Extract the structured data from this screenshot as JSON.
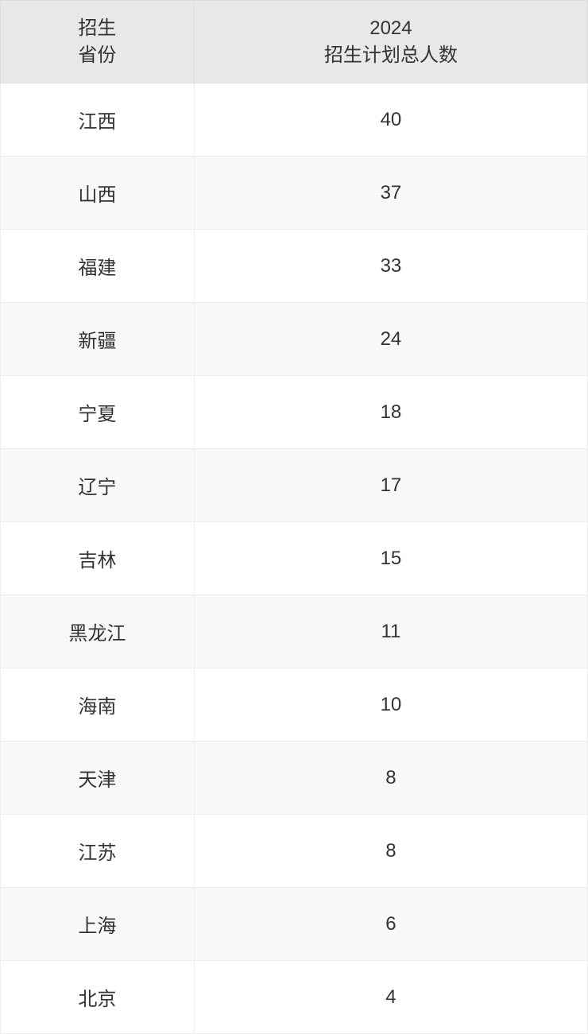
{
  "table": {
    "header": {
      "col1_line1": "招生",
      "col1_line2": "省份",
      "col2_line1": "2024",
      "col2_line2": "招生计划总人数"
    },
    "rows": [
      {
        "province": "江西",
        "count": "40"
      },
      {
        "province": "山西",
        "count": "37"
      },
      {
        "province": "福建",
        "count": "33"
      },
      {
        "province": "新疆",
        "count": "24"
      },
      {
        "province": "宁夏",
        "count": "18"
      },
      {
        "province": "辽宁",
        "count": "17"
      },
      {
        "province": "吉林",
        "count": "15"
      },
      {
        "province": "黑龙江",
        "count": "11"
      },
      {
        "province": "海南",
        "count": "10"
      },
      {
        "province": "天津",
        "count": "8"
      },
      {
        "province": "江苏",
        "count": "8"
      },
      {
        "province": "上海",
        "count": "6"
      },
      {
        "province": "北京",
        "count": "4"
      }
    ],
    "styling": {
      "header_bg": "#e8e8e8",
      "row_odd_bg": "#ffffff",
      "row_even_bg": "#f8f8f8",
      "border_color": "#eeeeee",
      "header_border_color": "#dcdcdc",
      "text_color": "#333333",
      "font_size": 24,
      "col1_width_pct": 33,
      "col2_width_pct": 67
    }
  }
}
